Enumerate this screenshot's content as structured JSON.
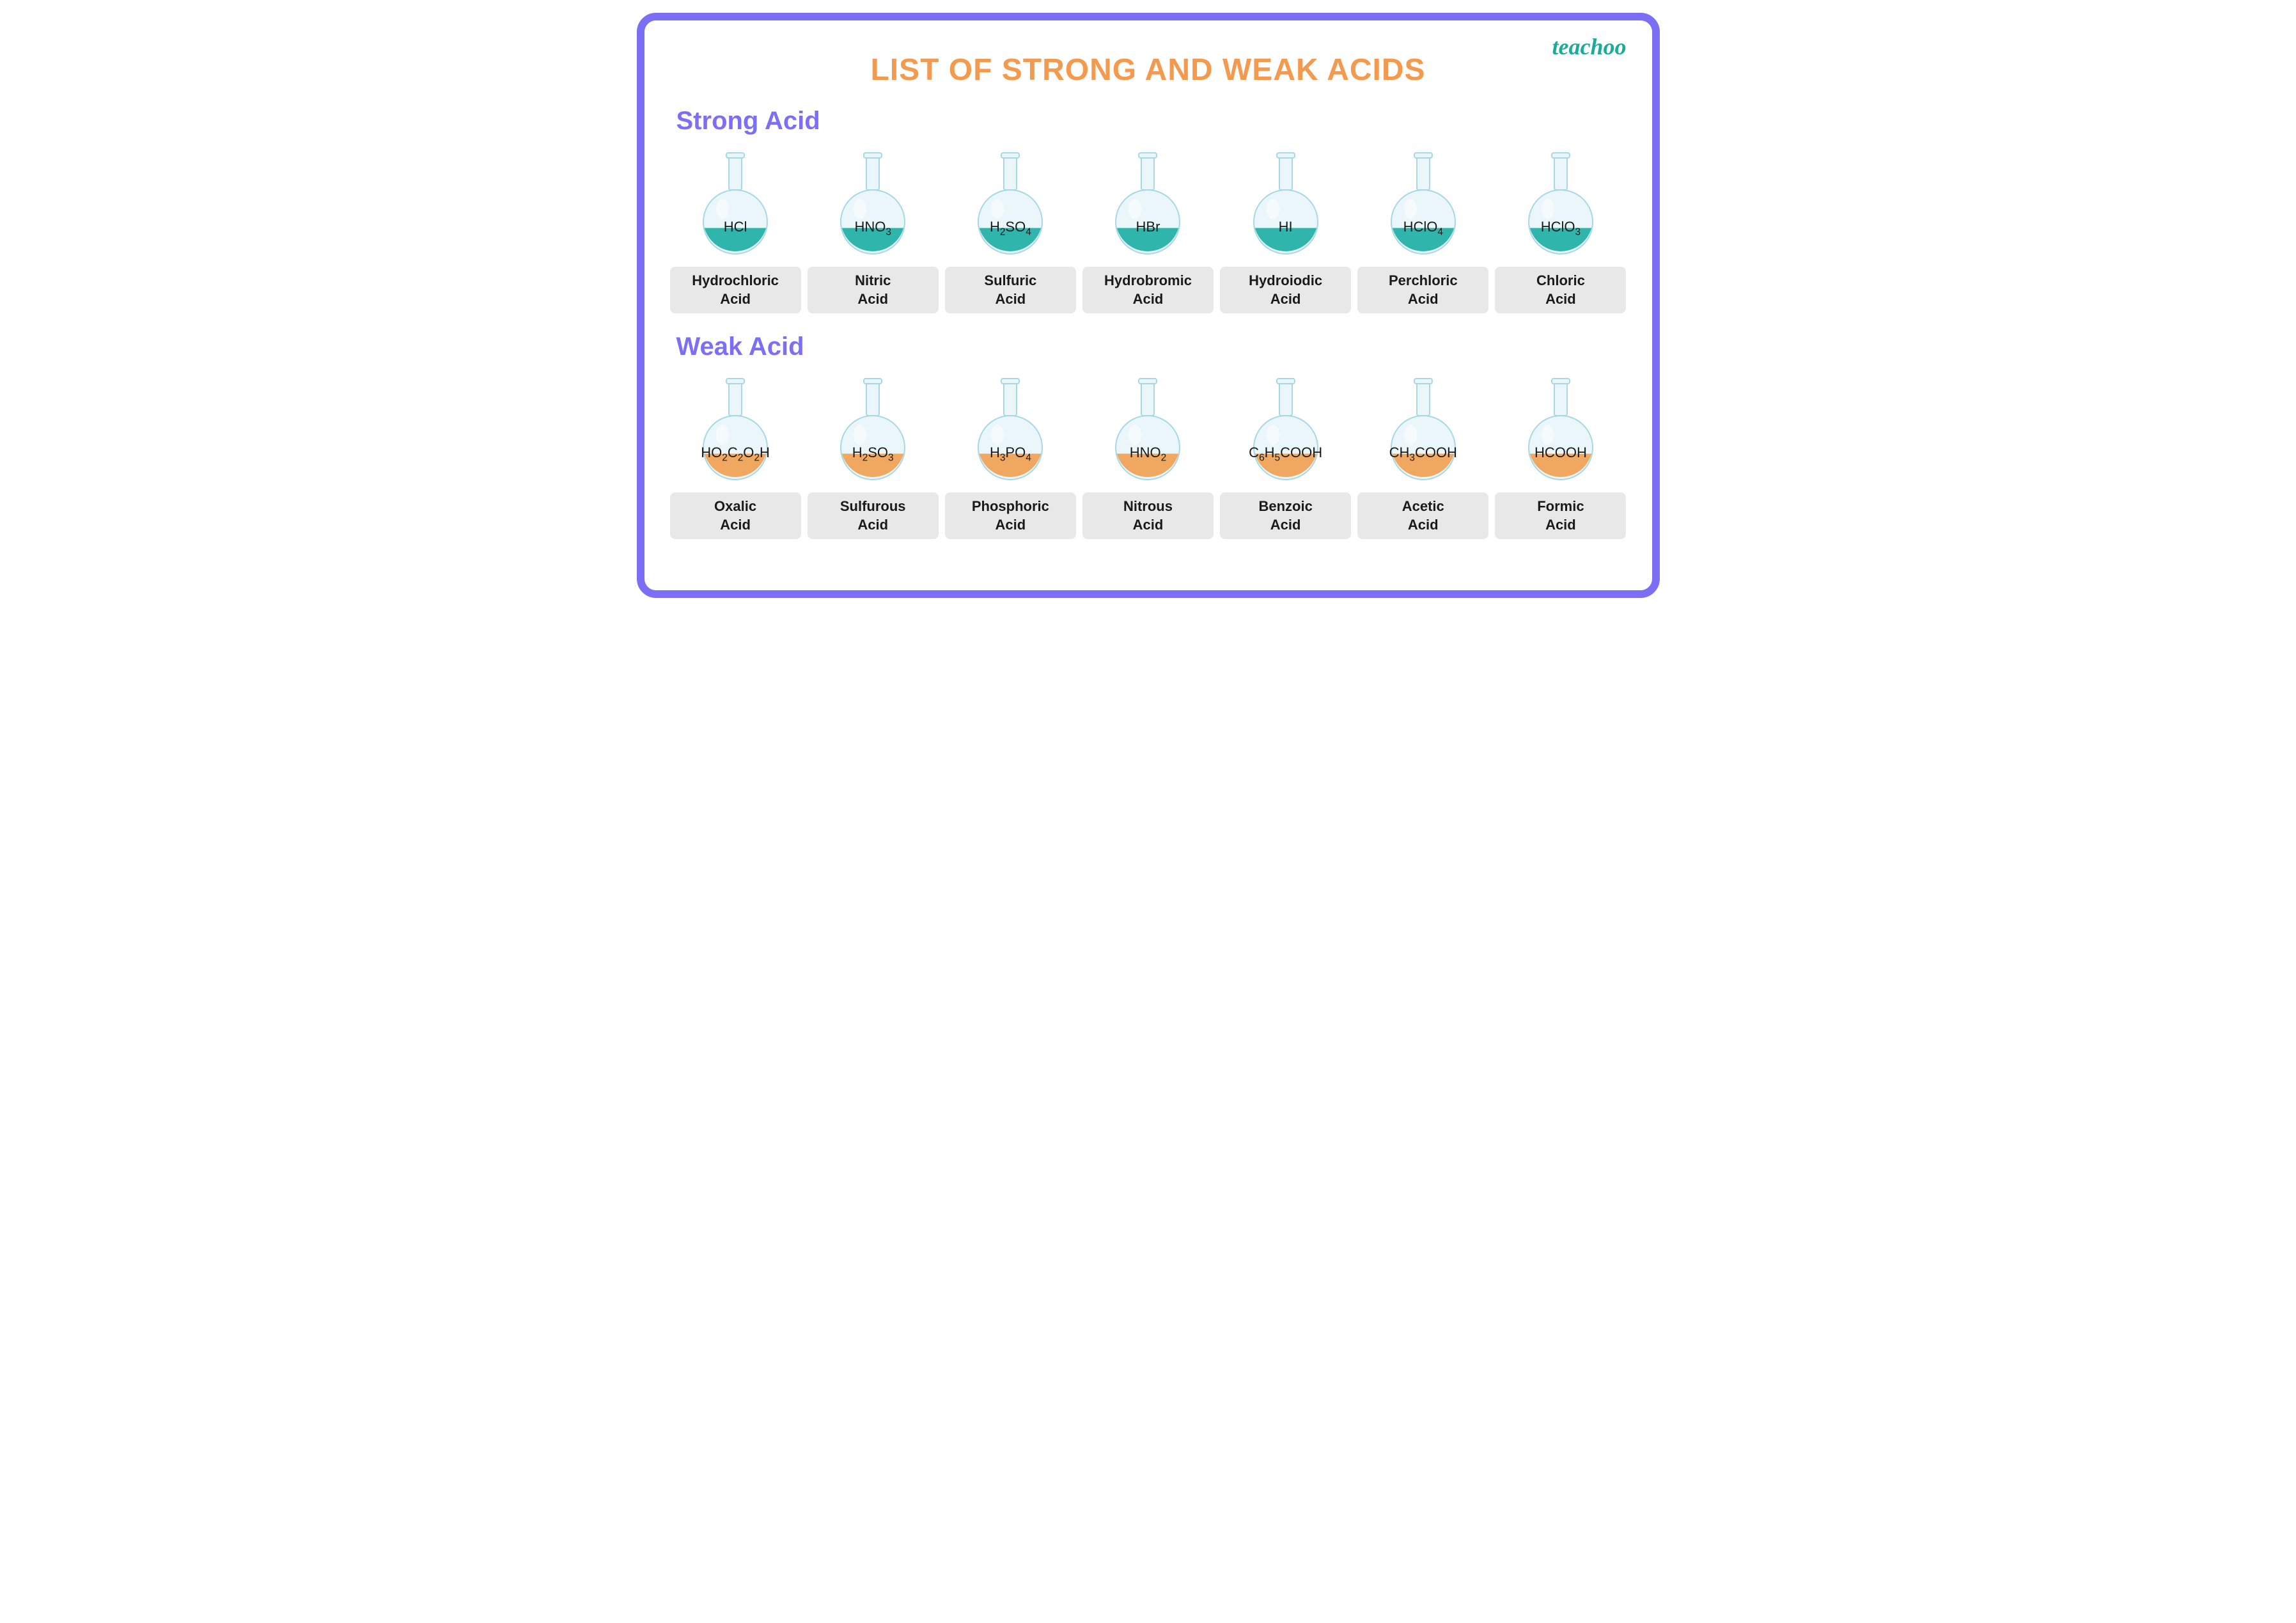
{
  "brand": "teachoo",
  "title": "LIST OF STRONG AND WEAK ACIDS",
  "colors": {
    "border": "#7c6ff5",
    "title": "#f39a4f",
    "section": "#7c6ff5",
    "labelBg": "#e8e8e8",
    "text": "#1a1a1a",
    "flaskGlass": "#d2edf4",
    "flaskGlassLight": "#eaf6f9",
    "flaskOutline": "#a8d8e5",
    "strongLiquid": "#2fb5ac",
    "weakLiquid": "#f0a860"
  },
  "sections": [
    {
      "heading": "Strong Acid",
      "liquidColor": "#2fb5ac",
      "items": [
        {
          "formula": "HCl",
          "name": "Hydrochloric Acid"
        },
        {
          "formula": "HNO<sub>3</sub>",
          "name": "Nitric Acid"
        },
        {
          "formula": "H<sub>2</sub>SO<sub>4</sub>",
          "name": "Sulfuric Acid"
        },
        {
          "formula": "HBr",
          "name": "Hydrobromic Acid"
        },
        {
          "formula": "HI",
          "name": "Hydroiodic Acid"
        },
        {
          "formula": "HClO<sub>4</sub>",
          "name": "Perchloric Acid"
        },
        {
          "formula": "HClO<sub>3</sub>",
          "name": "Chloric Acid"
        }
      ]
    },
    {
      "heading": "Weak Acid",
      "liquidColor": "#f0a860",
      "items": [
        {
          "formula": "HO<sub>2</sub>C<sub>2</sub>O<sub>2</sub>H",
          "name": "Oxalic Acid"
        },
        {
          "formula": "H<sub>2</sub>SO<sub>3</sub>",
          "name": "Sulfurous Acid"
        },
        {
          "formula": "H<sub>3</sub>PO<sub>4</sub>",
          "name": "Phosphoric Acid"
        },
        {
          "formula": "HNO<sub>2</sub>",
          "name": "Nitrous Acid"
        },
        {
          "formula": "C<sub>6</sub>H<sub>5</sub>COOH",
          "name": "Benzoic Acid"
        },
        {
          "formula": "CH<sub>3</sub>COOH",
          "name": "Acetic Acid"
        },
        {
          "formula": "HCOOH",
          "name": "Formic Acid"
        }
      ]
    }
  ]
}
